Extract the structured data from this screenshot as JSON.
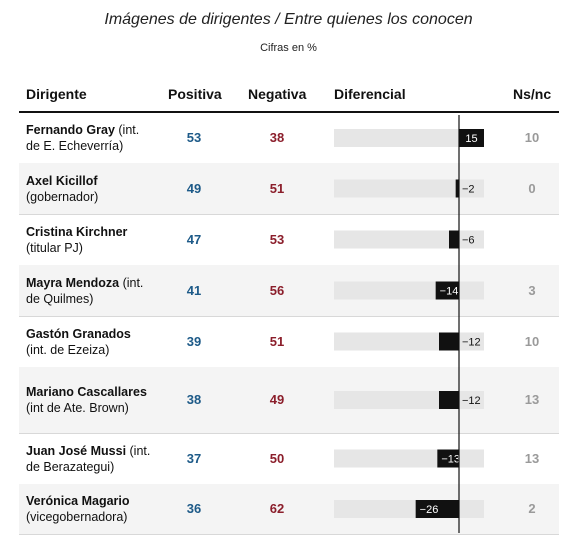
{
  "title": "Imágenes de dirigentes / Entre quienes los conocen",
  "subtitle": "Cifras en %",
  "headers": {
    "dirigente": "Dirigente",
    "positiva": "Positiva",
    "negativa": "Negativa",
    "diferencial": "Diferencial",
    "nsnc": "Ns/nc"
  },
  "colors": {
    "positive": "#1d5a88",
    "negative": "#8b1e2b",
    "bar": "#111111",
    "track": "#e6e6e6",
    "muted": "#9a9a9a"
  },
  "chart_data": {
    "type": "table",
    "columns": [
      "Dirigente",
      "Positiva",
      "Negativa",
      "Diferencial",
      "Ns/nc"
    ],
    "diff_range": [
      -30,
      30
    ],
    "rows": [
      {
        "name": "Fernando Gray",
        "detail": "(int. de E. Echeverría)",
        "positiva": "53",
        "negativa": "38",
        "diferencial": 15,
        "diff_label": "15",
        "nsnc": "10"
      },
      {
        "name": "Axel Kicillof",
        "detail": "(gobernador)",
        "positiva": "49",
        "negativa": "51",
        "diferencial": -2,
        "diff_label": "−2",
        "nsnc": "0"
      },
      {
        "name": "Cristina Kirchner",
        "detail": "(titular PJ)",
        "positiva": "47",
        "negativa": "53",
        "diferencial": -6,
        "diff_label": "−6",
        "nsnc": ""
      },
      {
        "name": "Mayra Mendoza",
        "detail": "(int. de Quilmes)",
        "positiva": "41",
        "negativa": "56",
        "diferencial": -14,
        "diff_label": "−14",
        "nsnc": "3"
      },
      {
        "name": "Gastón Granados",
        "detail": "(int. de Ezeiza)",
        "positiva": "39",
        "negativa": "51",
        "diferencial": -12,
        "diff_label": "−12",
        "nsnc": "10"
      },
      {
        "name": "Mariano Cascallares",
        "detail": "(int de Ate. Brown)",
        "positiva": "38",
        "negativa": "49",
        "diferencial": -12,
        "diff_label": "−12",
        "nsnc": "13"
      },
      {
        "name": "Juan José Mussi",
        "detail": "(int. de Berazategui)",
        "positiva": "37",
        "negativa": "50",
        "diferencial": -13,
        "diff_label": "−13",
        "nsnc": "13"
      },
      {
        "name": "Verónica Magario",
        "detail": "(vicegobernadora)",
        "positiva": "36",
        "negativa": "62",
        "diferencial": -26,
        "diff_label": "−26",
        "nsnc": "2"
      }
    ]
  }
}
